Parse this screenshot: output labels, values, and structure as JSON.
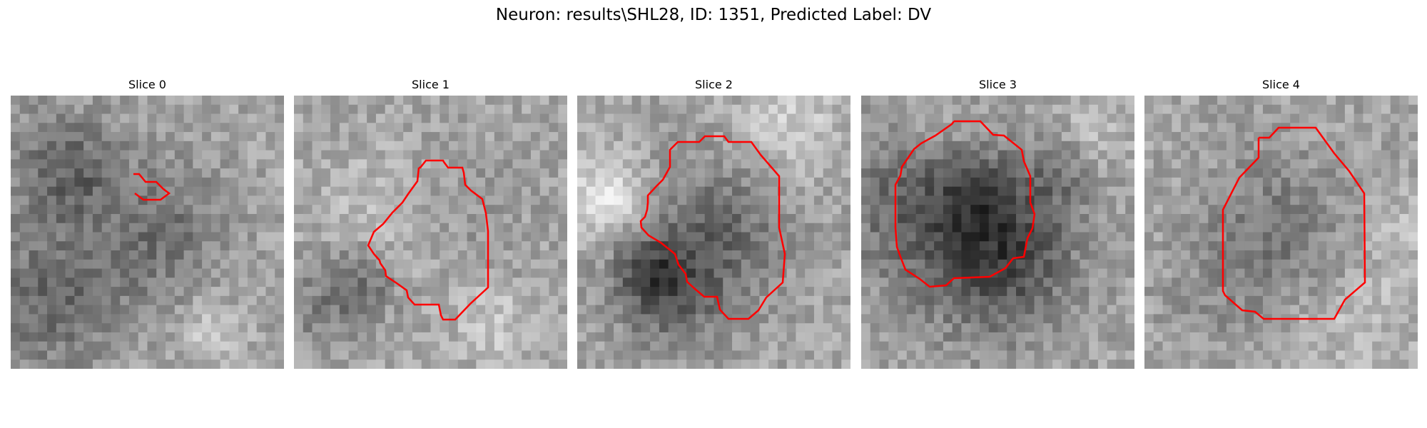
{
  "figure": {
    "title": "Neuron: results\\SHL28, ID: 1351, Predicted Label: DV"
  },
  "slices": [
    {
      "label": "Slice 0"
    },
    {
      "label": "Slice 1"
    },
    {
      "label": "Slice 2"
    },
    {
      "label": "Slice 3"
    },
    {
      "label": "Slice 4"
    }
  ],
  "colors": {
    "contour": "#ff0000",
    "background": "#ffffff"
  },
  "image_style": "grayscale pixelated microscopy slices with red segmentation contour"
}
